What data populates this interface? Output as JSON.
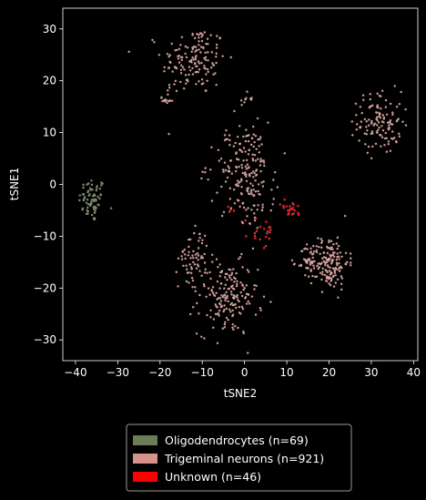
{
  "chart_data": {
    "type": "scatter",
    "title": "",
    "xlabel": "tSNE2",
    "ylabel": "tSNE1",
    "xlim": [
      -43,
      41
    ],
    "ylim": [
      -34,
      34
    ],
    "xticks": [
      -40,
      -30,
      -20,
      -10,
      0,
      10,
      20,
      30,
      40
    ],
    "yticks": [
      -30,
      -20,
      -10,
      0,
      10,
      20,
      30
    ],
    "background": "#000000",
    "grid": false,
    "legend_position": "below",
    "series": [
      {
        "name": "Oligodendrocytes (n=69)",
        "color": "#6b7d55",
        "count": 69,
        "clusters": [
          {
            "center": [
              -36,
              -3
            ],
            "spread": [
              1.6,
              2.2
            ]
          }
        ]
      },
      {
        "name": "Trigeminal neurons (n=921)",
        "color": "#d4928a",
        "count": 921,
        "clusters": [
          {
            "center": [
              -12,
              24
            ],
            "spread": [
              3.8,
              3.4
            ],
            "share": 0.16
          },
          {
            "center": [
              -18.5,
              16.5
            ],
            "spread": [
              0.8,
              0.9
            ],
            "share": 0.015
          },
          {
            "center": [
              0,
              16.5
            ],
            "spread": [
              1.0,
              0.6
            ],
            "share": 0.01
          },
          {
            "center": [
              32,
              12
            ],
            "spread": [
              2.6,
              3.0
            ],
            "share": 0.13
          },
          {
            "center": [
              -2,
              4
            ],
            "spread": [
              3.5,
              4.0
            ],
            "share": 0.1
          },
          {
            "center": [
              2,
              0
            ],
            "spread": [
              2.5,
              4.5
            ],
            "share": 0.12
          },
          {
            "center": [
              -12,
              -14
            ],
            "spread": [
              1.8,
              3.0
            ],
            "share": 0.07
          },
          {
            "center": [
              -4,
              -22
            ],
            "spread": [
              3.5,
              3.5
            ],
            "share": 0.19
          },
          {
            "center": [
              20,
              -15
            ],
            "spread": [
              2.3,
              2.6
            ],
            "share": 0.17
          },
          {
            "center": [
              15,
              -15
            ],
            "spread": [
              1.2,
              1.5
            ],
            "share": 0.035
          }
        ]
      },
      {
        "name": "Unknown (n=46)",
        "color": "#ff0000",
        "count": 46,
        "clusters": [
          {
            "center": [
              4,
              -9
            ],
            "spread": [
              1.6,
              1.8
            ],
            "share": 0.45
          },
          {
            "center": [
              11,
              -5
            ],
            "spread": [
              1.3,
              1.0
            ],
            "share": 0.45
          },
          {
            "center": [
              -4,
              -5
            ],
            "spread": [
              1.5,
              0.5
            ],
            "share": 0.1
          }
        ]
      }
    ]
  }
}
